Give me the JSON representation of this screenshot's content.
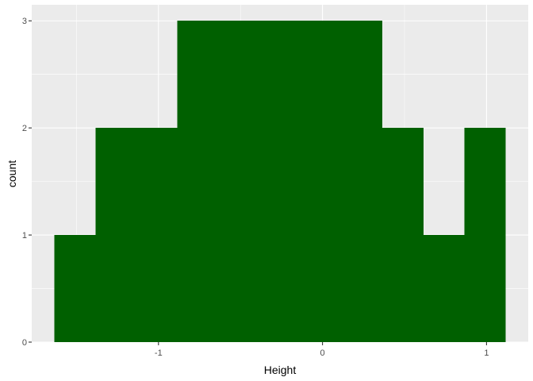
{
  "chart_data": {
    "type": "bar",
    "subtype": "histogram",
    "xlabel": "Height",
    "ylabel": "count",
    "xlim": [
      -1.7727,
      1.2543
    ],
    "ylim": [
      0,
      3.15
    ],
    "x_ticks": [
      -1,
      0,
      1
    ],
    "x_tick_labels": [
      "-1",
      "0",
      "1"
    ],
    "y_ticks": [
      0,
      1,
      2,
      3
    ],
    "y_tick_labels": [
      "0",
      "1",
      "2",
      "3"
    ],
    "grid": true,
    "bin_width": 0.25,
    "bins": [
      {
        "x0": -1.6346,
        "x1": -1.3846,
        "count": 1
      },
      {
        "x0": -1.3846,
        "x1": -1.1346,
        "count": 2
      },
      {
        "x0": -1.1346,
        "x1": -0.8846,
        "count": 2
      },
      {
        "x0": -0.8846,
        "x1": -0.6346,
        "count": 3
      },
      {
        "x0": -0.6346,
        "x1": -0.3846,
        "count": 3
      },
      {
        "x0": -0.3846,
        "x1": -0.1346,
        "count": 3
      },
      {
        "x0": -0.1346,
        "x1": 0.1154,
        "count": 3
      },
      {
        "x0": 0.1154,
        "x1": 0.3654,
        "count": 3
      },
      {
        "x0": 0.3654,
        "x1": 0.6154,
        "count": 2
      },
      {
        "x0": 0.6154,
        "x1": 0.8654,
        "count": 1
      },
      {
        "x0": 0.8654,
        "x1": 1.1154,
        "count": 2
      }
    ],
    "colors": {
      "bar_fill": "#006000",
      "panel_background": "#EBEBEB",
      "grid": "#FFFFFF",
      "tick": "#333333",
      "tick_label": "#4D4D4D",
      "axis_title": "#000000"
    }
  }
}
